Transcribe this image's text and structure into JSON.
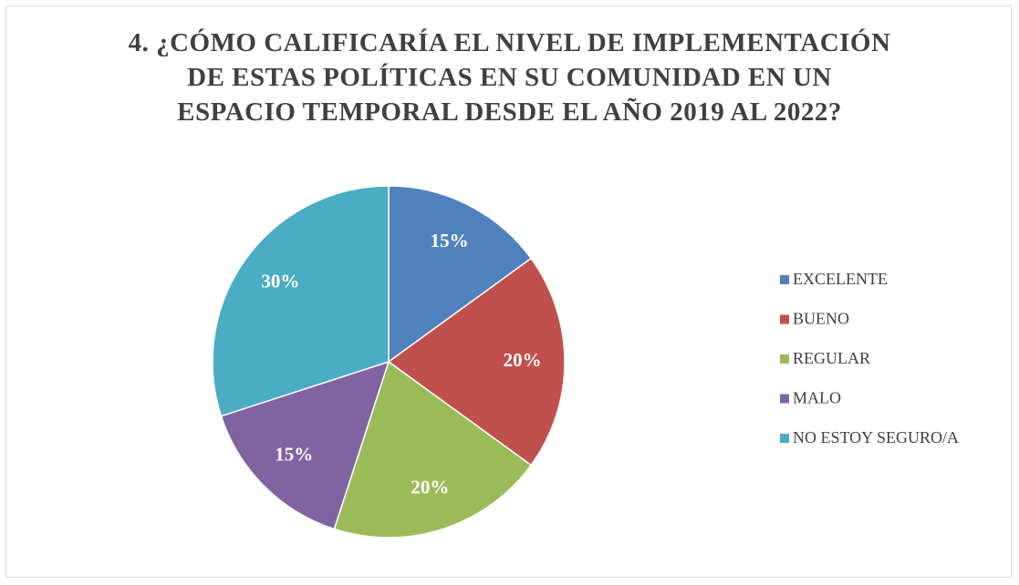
{
  "chart_data": {
    "type": "pie",
    "title": "4. ¿CÓMO CALIFICARÍA EL NIVEL DE IMPLEMENTACIÓN\nDE ESTAS POLÍTICAS EN SU COMUNIDAD EN UN\nESPACIO TEMPORAL DESDE EL AÑO 2019 AL 2022?",
    "categories": [
      "EXCELENTE",
      "BUENO",
      "REGULAR",
      "MALO",
      "NO ESTOY SEGURO/A"
    ],
    "values": [
      15,
      20,
      20,
      15,
      30
    ],
    "value_labels": [
      "15%",
      "20%",
      "20%",
      "15%",
      "30%"
    ],
    "colors": [
      "#4f81bd",
      "#c0504d",
      "#9bbb59",
      "#8064a2",
      "#4bacc6"
    ],
    "legend": "right"
  }
}
